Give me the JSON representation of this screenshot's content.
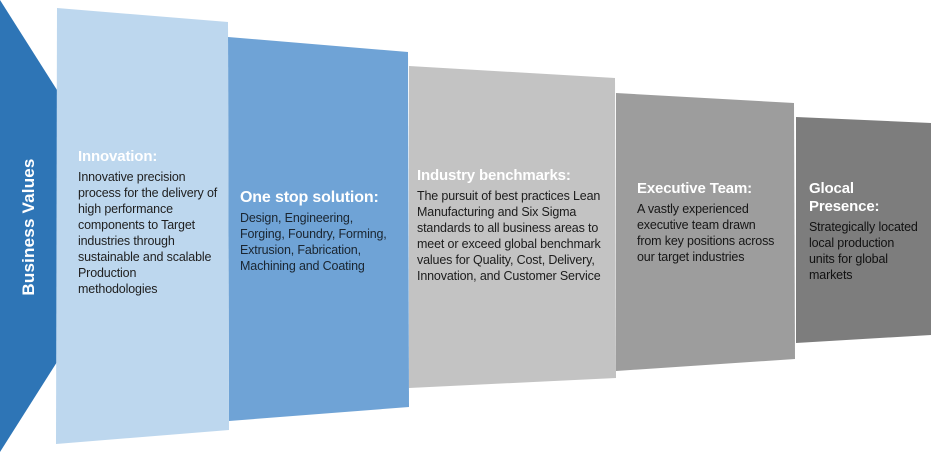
{
  "slide_title": "Business Values",
  "arrow": {
    "label": "Business Values",
    "color": "#2E75B6",
    "text_color": "#ffffff"
  },
  "panels": [
    {
      "heading": "Innovation:",
      "body": "Innovative precision process for the delivery of high performance components to Target industries through sustainable and scalable Production methodologies",
      "bg": "#BDD7EE",
      "heading_color": "#ffffff",
      "body_color": "#1f1f1f"
    },
    {
      "heading": "One stop solution:",
      "body": "Design, Engineering, Forging, Foundry,  Forming, Extrusion, Fabrication, Machining and Coating",
      "bg": "#6FA3D6",
      "heading_color": "#ffffff",
      "body_color": "#1a2530"
    },
    {
      "heading": "Industry benchmarks:",
      "body": "The pursuit of best practices Lean Manufacturing and Six Sigma standards to all business areas to meet or exceed global benchmark values for Quality, Cost, Delivery, Innovation, and Customer Service",
      "bg": "#C3C3C3",
      "heading_color": "#ffffff",
      "body_color": "#1c1c1c"
    },
    {
      "heading": "Executive Team:",
      "body": "A vastly experienced executive team drawn from key positions across our target industries",
      "bg": "#9D9D9D",
      "heading_color": "#ffffff",
      "body_color": "#161616"
    },
    {
      "heading": "Glocal Presence:",
      "body": "Strategically located local production units for global markets",
      "bg": "#7D7D7D",
      "heading_color": "#ffffff",
      "body_color": "#111111"
    }
  ]
}
